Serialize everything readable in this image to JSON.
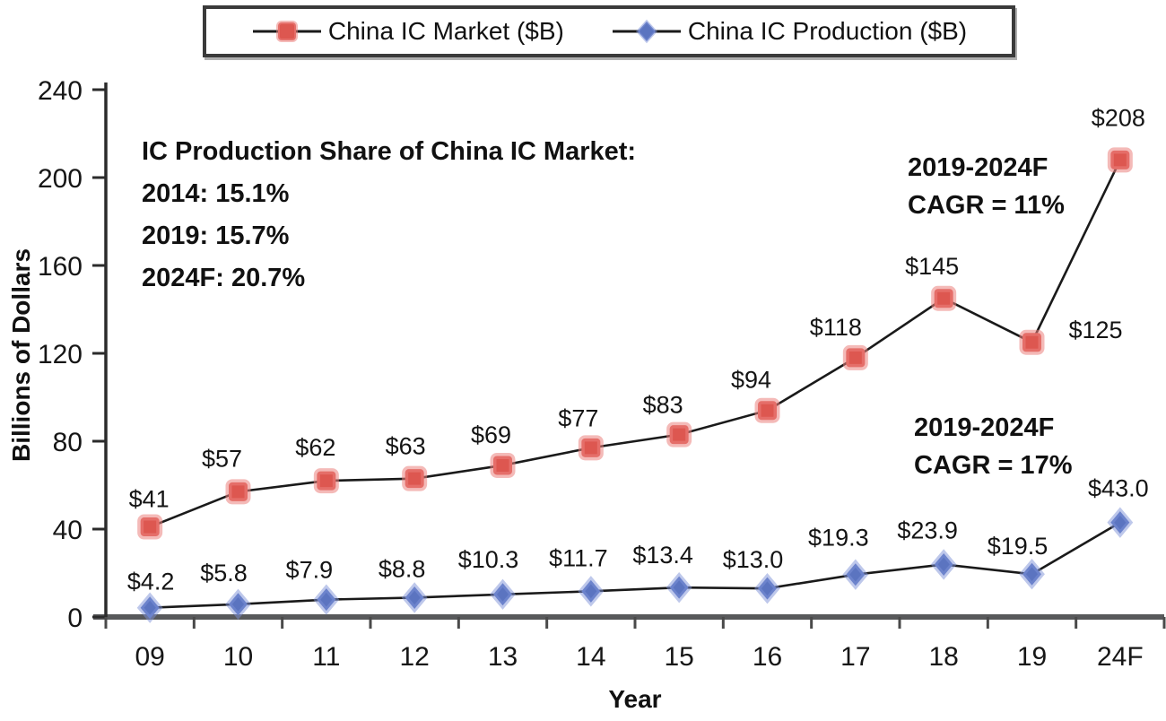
{
  "chart_data": {
    "type": "line",
    "x": [
      "09",
      "10",
      "11",
      "12",
      "13",
      "14",
      "15",
      "16",
      "17",
      "18",
      "19",
      "24F"
    ],
    "xlabel": "Year",
    "ylabel": "Billions of Dollars",
    "ylim": [
      0,
      240
    ],
    "yticks": [
      0,
      40,
      80,
      120,
      160,
      200,
      240
    ],
    "grid": false,
    "legend_position": "top-center",
    "line_color": "#1a1a1a",
    "series": [
      {
        "name": "China IC Market ($B)",
        "marker": "square",
        "color": "#dd5750",
        "halo_color": "rgba(235,130,125,0.55)",
        "values": [
          41,
          57,
          62,
          63,
          69,
          77,
          83,
          94,
          118,
          145,
          125,
          208
        ],
        "labels": [
          "$41",
          "$57",
          "$62",
          "$63",
          "$69",
          "$77",
          "$83",
          "$94",
          "$118",
          "$145",
          "$125",
          "$208"
        ]
      },
      {
        "name": "China IC Production ($B)",
        "marker": "diamond",
        "color": "#5b74c0",
        "halo_color": "rgba(125,145,215,0.5)",
        "values": [
          4.2,
          5.8,
          7.9,
          8.8,
          10.3,
          11.7,
          13.4,
          13.0,
          19.3,
          23.9,
          19.5,
          43.0
        ],
        "labels": [
          "$4.2",
          "$5.8",
          "$7.9",
          "$8.8",
          "$10.3",
          "$11.7",
          "$13.4",
          "$13.0",
          "$19.3",
          "$23.9",
          "$19.5",
          "$43.0"
        ]
      }
    ],
    "annotations": {
      "share_block": {
        "title": "IC Production Share of China IC Market:",
        "lines": [
          "2014: 15.1%",
          "2019: 15.7%",
          "2024F: 20.7%"
        ]
      },
      "cagr_market": {
        "line1": "2019-2024F",
        "line2": "CAGR = 11%"
      },
      "cagr_production": {
        "line1": "2019-2024F",
        "line2": "CAGR = 17%"
      }
    }
  }
}
